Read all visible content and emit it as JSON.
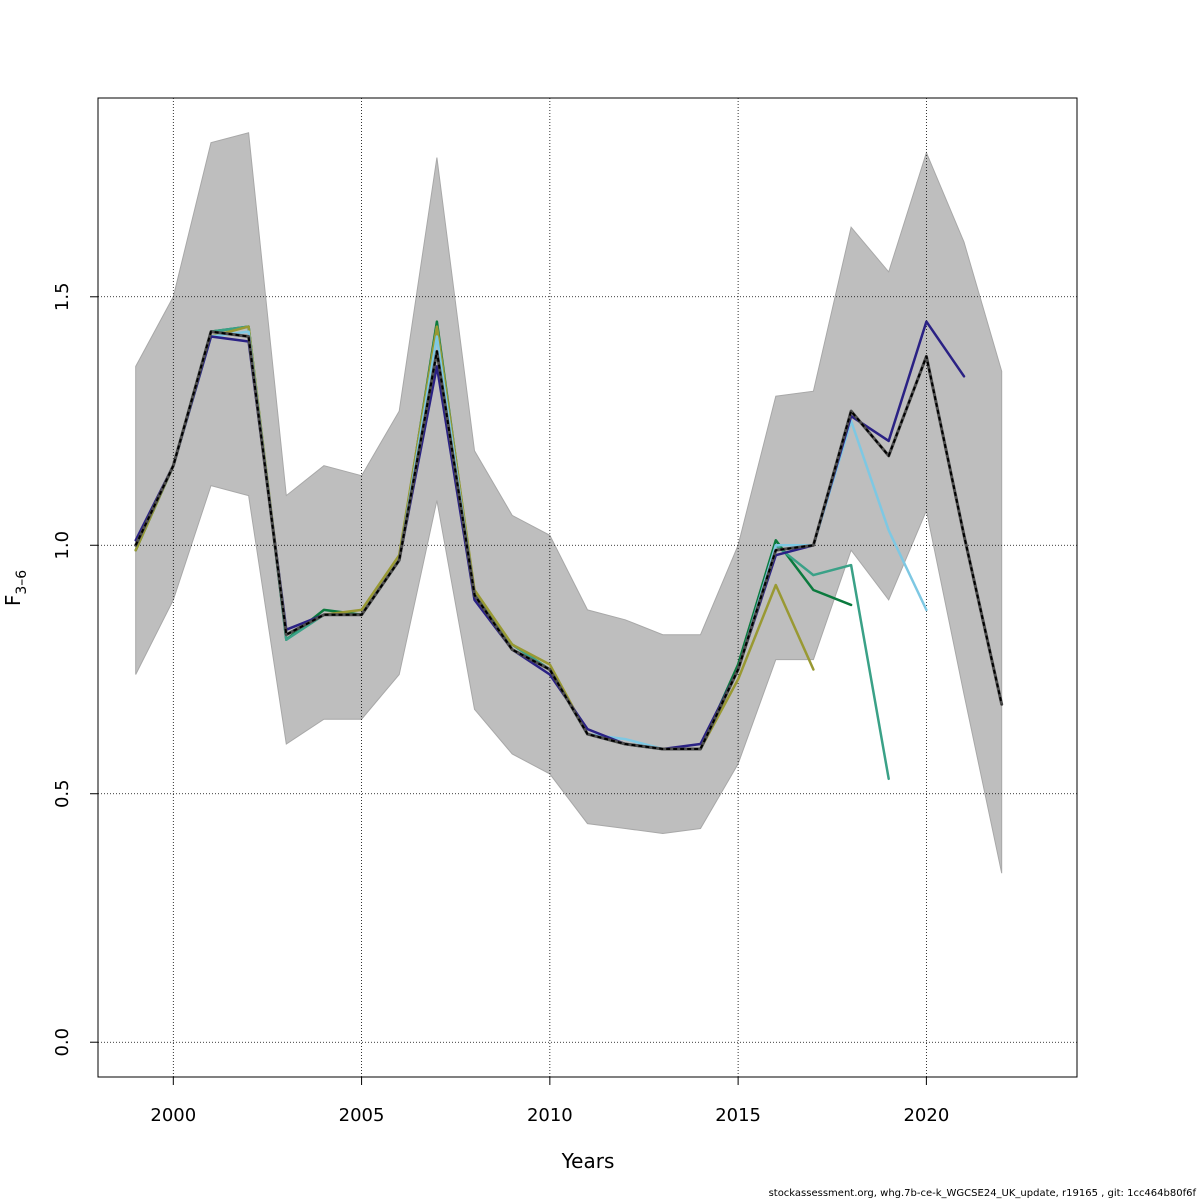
{
  "chart_data": {
    "type": "line",
    "xlabel": "Years",
    "ylabel_main": "F",
    "ylabel_sub": "3–6",
    "xlim": [
      1998,
      2024
    ],
    "ylim": [
      -0.07,
      1.9
    ],
    "xticks": [
      2000,
      2005,
      2010,
      2015,
      2020
    ],
    "yticks": [
      0.0,
      0.5,
      1.0,
      1.5
    ],
    "ytick_labels": [
      "0.0",
      "0.5",
      "1.0",
      "1.5"
    ],
    "grid": true,
    "band": {
      "color": "#bebebe",
      "x": [
        1999,
        2000,
        2001,
        2002,
        2003,
        2004,
        2005,
        2006,
        2007,
        2008,
        2009,
        2010,
        2011,
        2012,
        2013,
        2014,
        2015,
        2016,
        2017,
        2018,
        2019,
        2020,
        2021,
        2022
      ],
      "upper": [
        1.36,
        1.5,
        1.81,
        1.83,
        1.1,
        1.16,
        1.14,
        1.27,
        1.78,
        1.19,
        1.06,
        1.02,
        0.87,
        0.85,
        0.82,
        0.82,
        1.0,
        1.3,
        1.31,
        1.64,
        1.55,
        1.79,
        1.61,
        1.35
      ],
      "lower": [
        0.74,
        0.89,
        1.12,
        1.1,
        0.6,
        0.65,
        0.65,
        0.74,
        1.09,
        0.67,
        0.58,
        0.54,
        0.44,
        0.43,
        0.42,
        0.43,
        0.56,
        0.77,
        0.77,
        0.99,
        0.89,
        1.07,
        0.7,
        0.34
      ]
    },
    "series": [
      {
        "color": "#0b7a3e",
        "x": [
          1999,
          2000,
          2001,
          2002,
          2003,
          2004,
          2005,
          2006,
          2007,
          2008,
          2009,
          2010,
          2011,
          2012,
          2013,
          2014,
          2015,
          2016,
          2017,
          2018
        ],
        "values": [
          0.99,
          1.16,
          1.43,
          1.44,
          0.81,
          0.87,
          0.86,
          0.97,
          1.45,
          0.9,
          0.8,
          0.75,
          0.62,
          0.6,
          0.59,
          0.59,
          0.76,
          1.01,
          0.91,
          0.88
        ]
      },
      {
        "color": "#3aa187",
        "x": [
          1999,
          2000,
          2001,
          2002,
          2003,
          2004,
          2005,
          2006,
          2007,
          2008,
          2009,
          2010,
          2011,
          2012,
          2013,
          2014,
          2015,
          2016,
          2017,
          2018,
          2019
        ],
        "values": [
          1.0,
          1.16,
          1.43,
          1.44,
          0.81,
          0.86,
          0.86,
          0.97,
          1.44,
          0.9,
          0.8,
          0.75,
          0.62,
          0.6,
          0.59,
          0.59,
          0.75,
          1.0,
          0.94,
          0.96,
          0.53
        ]
      },
      {
        "color": "#999933",
        "x": [
          1999,
          2000,
          2001,
          2002,
          2003,
          2004,
          2005,
          2006,
          2007,
          2008,
          2009,
          2010,
          2011,
          2012,
          2013,
          2014,
          2015,
          2016,
          2017
        ],
        "values": [
          0.99,
          1.16,
          1.42,
          1.44,
          0.82,
          0.86,
          0.87,
          0.98,
          1.44,
          0.91,
          0.8,
          0.76,
          0.62,
          0.6,
          0.59,
          0.59,
          0.73,
          0.92,
          0.75
        ]
      },
      {
        "color": "#7ec8e3",
        "x": [
          1999,
          2000,
          2001,
          2002,
          2003,
          2004,
          2005,
          2006,
          2007,
          2008,
          2009,
          2010,
          2011,
          2012,
          2013,
          2014,
          2015,
          2016,
          2017,
          2018,
          2019,
          2020
        ],
        "values": [
          1.0,
          1.16,
          1.42,
          1.43,
          0.82,
          0.86,
          0.86,
          0.97,
          1.42,
          0.9,
          0.79,
          0.75,
          0.62,
          0.61,
          0.59,
          0.59,
          0.75,
          1.0,
          1.0,
          1.25,
          1.03,
          0.87
        ]
      },
      {
        "color": "#2a2184",
        "x": [
          1999,
          2000,
          2001,
          2002,
          2003,
          2004,
          2005,
          2006,
          2007,
          2008,
          2009,
          2010,
          2011,
          2012,
          2013,
          2014,
          2015,
          2016,
          2017,
          2018,
          2019,
          2020,
          2021
        ],
        "values": [
          1.01,
          1.16,
          1.42,
          1.41,
          0.83,
          0.86,
          0.86,
          0.97,
          1.36,
          0.89,
          0.79,
          0.74,
          0.63,
          0.6,
          0.59,
          0.6,
          0.75,
          0.98,
          1.0,
          1.26,
          1.21,
          1.45,
          1.34
        ]
      },
      {
        "color": "#000000",
        "dashed": true,
        "width": 3,
        "x": [
          1999,
          2000,
          2001,
          2002,
          2003,
          2004,
          2005,
          2006,
          2007,
          2008,
          2009,
          2010,
          2011,
          2012,
          2013,
          2014,
          2015,
          2016,
          2017,
          2018,
          2019,
          2020,
          2021,
          2022
        ],
        "values": [
          1.0,
          1.16,
          1.43,
          1.42,
          0.82,
          0.86,
          0.86,
          0.97,
          1.39,
          0.9,
          0.79,
          0.75,
          0.62,
          0.6,
          0.59,
          0.59,
          0.75,
          0.99,
          1.0,
          1.27,
          1.18,
          1.38,
          1.02,
          0.68
        ]
      }
    ]
  },
  "footer_text": "stockassessment.org, whg.7b-ce-k_WGCSE24_UK_update, r19165 , git: 1cc464b80f6f"
}
